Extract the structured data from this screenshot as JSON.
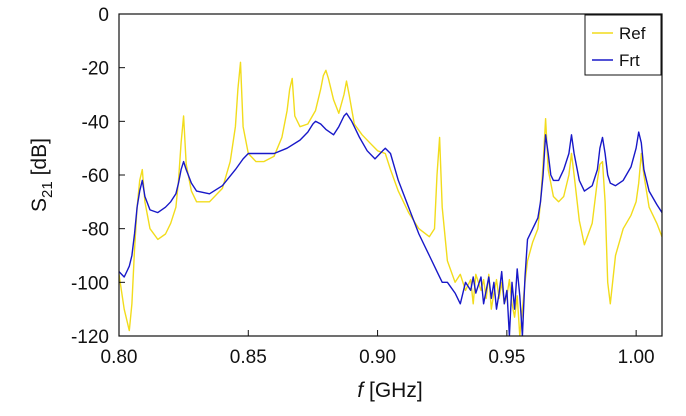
{
  "chart_data": {
    "type": "line",
    "xlabel_italic": "f",
    "xlabel_rest": "[GHz]",
    "ylabel_main": "S",
    "ylabel_sub": "21",
    "ylabel_rest": "[dB]",
    "xlim": [
      0.8,
      1.01
    ],
    "ylim": [
      -120,
      0
    ],
    "xticks": [
      0.8,
      0.85,
      0.9,
      0.95,
      1.0
    ],
    "xtick_labels": [
      "0.80",
      "0.85",
      "0.90",
      "0.95",
      "1.00"
    ],
    "yticks": [
      0,
      -20,
      -40,
      -60,
      -80,
      -100,
      -120
    ],
    "ytick_labels": [
      "0",
      "-20",
      "-40",
      "-60",
      "-80",
      "-100",
      "-120"
    ],
    "grid": false,
    "legend_position": "top-right",
    "series": [
      {
        "name": "Ref",
        "color": "#f2dc1c",
        "x": [
          0.8,
          0.802,
          0.804,
          0.805,
          0.806,
          0.807,
          0.808,
          0.809,
          0.81,
          0.812,
          0.815,
          0.818,
          0.82,
          0.822,
          0.823,
          0.824,
          0.825,
          0.826,
          0.828,
          0.83,
          0.835,
          0.84,
          0.843,
          0.845,
          0.846,
          0.847,
          0.848,
          0.85,
          0.853,
          0.856,
          0.86,
          0.863,
          0.865,
          0.866,
          0.867,
          0.868,
          0.87,
          0.873,
          0.876,
          0.878,
          0.879,
          0.88,
          0.881,
          0.883,
          0.885,
          0.887,
          0.888,
          0.889,
          0.891,
          0.894,
          0.897,
          0.9,
          0.903,
          0.905,
          0.908,
          0.912,
          0.916,
          0.92,
          0.922,
          0.923,
          0.924,
          0.925,
          0.927,
          0.93,
          0.932,
          0.934,
          0.936,
          0.937,
          0.938,
          0.94,
          0.941,
          0.942,
          0.943,
          0.944,
          0.945,
          0.946,
          0.947,
          0.948,
          0.949,
          0.95,
          0.951,
          0.952,
          0.953,
          0.954,
          0.955,
          0.956,
          0.957,
          0.958,
          0.96,
          0.962,
          0.963,
          0.964,
          0.965,
          0.966,
          0.968,
          0.97,
          0.972,
          0.974,
          0.975,
          0.976,
          0.978,
          0.98,
          0.983,
          0.985,
          0.986,
          0.987,
          0.988,
          0.989,
          0.99,
          0.992,
          0.995,
          0.998,
          1.0,
          1.001,
          1.002,
          1.003,
          1.005,
          1.008,
          1.01
        ],
        "y": [
          -97,
          -110,
          -118,
          -108,
          -88,
          -72,
          -62,
          -58,
          -70,
          -80,
          -84,
          -82,
          -78,
          -72,
          -62,
          -48,
          -38,
          -56,
          -66,
          -70,
          -70,
          -65,
          -55,
          -42,
          -28,
          -18,
          -42,
          -52,
          -55,
          -55,
          -53,
          -46,
          -36,
          -28,
          -24,
          -38,
          -42,
          -41,
          -36,
          -28,
          -23,
          -21,
          -24,
          -32,
          -37,
          -30,
          -25,
          -30,
          -41,
          -45,
          -48,
          -51,
          -52,
          -58,
          -66,
          -74,
          -80,
          -83,
          -80,
          -60,
          -46,
          -72,
          -92,
          -100,
          -97,
          -103,
          -99,
          -108,
          -97,
          -103,
          -99,
          -106,
          -97,
          -110,
          -104,
          -99,
          -106,
          -100,
          -108,
          -105,
          -99,
          -108,
          -113,
          -105,
          -120,
          -110,
          -100,
          -92,
          -85,
          -80,
          -70,
          -56,
          -39,
          -58,
          -68,
          -70,
          -68,
          -60,
          -52,
          -60,
          -77,
          -86,
          -78,
          -62,
          -56,
          -55,
          -70,
          -100,
          -108,
          -90,
          -80,
          -75,
          -70,
          -63,
          -52,
          -60,
          -72,
          -78,
          -83
        ]
      },
      {
        "name": "Frt",
        "color": "#1818c8",
        "x": [
          0.8,
          0.802,
          0.804,
          0.805,
          0.806,
          0.807,
          0.808,
          0.809,
          0.81,
          0.812,
          0.815,
          0.818,
          0.82,
          0.822,
          0.823,
          0.824,
          0.825,
          0.826,
          0.828,
          0.83,
          0.835,
          0.84,
          0.845,
          0.848,
          0.85,
          0.855,
          0.86,
          0.865,
          0.87,
          0.873,
          0.875,
          0.876,
          0.878,
          0.88,
          0.883,
          0.885,
          0.887,
          0.888,
          0.89,
          0.893,
          0.896,
          0.899,
          0.902,
          0.903,
          0.905,
          0.908,
          0.912,
          0.916,
          0.92,
          0.923,
          0.925,
          0.927,
          0.93,
          0.932,
          0.934,
          0.936,
          0.937,
          0.938,
          0.94,
          0.941,
          0.942,
          0.943,
          0.944,
          0.945,
          0.946,
          0.947,
          0.948,
          0.949,
          0.95,
          0.951,
          0.952,
          0.953,
          0.954,
          0.955,
          0.956,
          0.957,
          0.958,
          0.96,
          0.962,
          0.963,
          0.964,
          0.965,
          0.966,
          0.967,
          0.968,
          0.97,
          0.972,
          0.974,
          0.975,
          0.976,
          0.978,
          0.98,
          0.983,
          0.985,
          0.986,
          0.987,
          0.988,
          0.989,
          0.99,
          0.992,
          0.995,
          0.998,
          1.0,
          1.001,
          1.002,
          1.003,
          1.005,
          1.008,
          1.01
        ],
        "y": [
          -96,
          -98,
          -94,
          -90,
          -82,
          -72,
          -66,
          -62,
          -68,
          -73,
          -74,
          -72,
          -70,
          -67,
          -63,
          -58,
          -55,
          -58,
          -63,
          -66,
          -67,
          -64,
          -58,
          -54,
          -52,
          -52,
          -52,
          -50,
          -47,
          -44,
          -41,
          -40,
          -41,
          -43,
          -45,
          -42,
          -38,
          -37,
          -40,
          -46,
          -51,
          -54,
          -51,
          -50,
          -52,
          -62,
          -72,
          -82,
          -90,
          -96,
          -100,
          -100,
          -104,
          -108,
          -100,
          -103,
          -98,
          -104,
          -98,
          -108,
          -103,
          -98,
          -106,
          -100,
          -110,
          -104,
          -96,
          -108,
          -103,
          -120,
          -100,
          -110,
          -95,
          -105,
          -120,
          -98,
          -84,
          -80,
          -76,
          -70,
          -60,
          -45,
          -52,
          -60,
          -62,
          -62,
          -58,
          -52,
          -45,
          -52,
          -62,
          -66,
          -64,
          -58,
          -50,
          -46,
          -52,
          -60,
          -63,
          -64,
          -62,
          -57,
          -50,
          -44,
          -48,
          -58,
          -66,
          -71,
          -74
        ]
      }
    ]
  }
}
